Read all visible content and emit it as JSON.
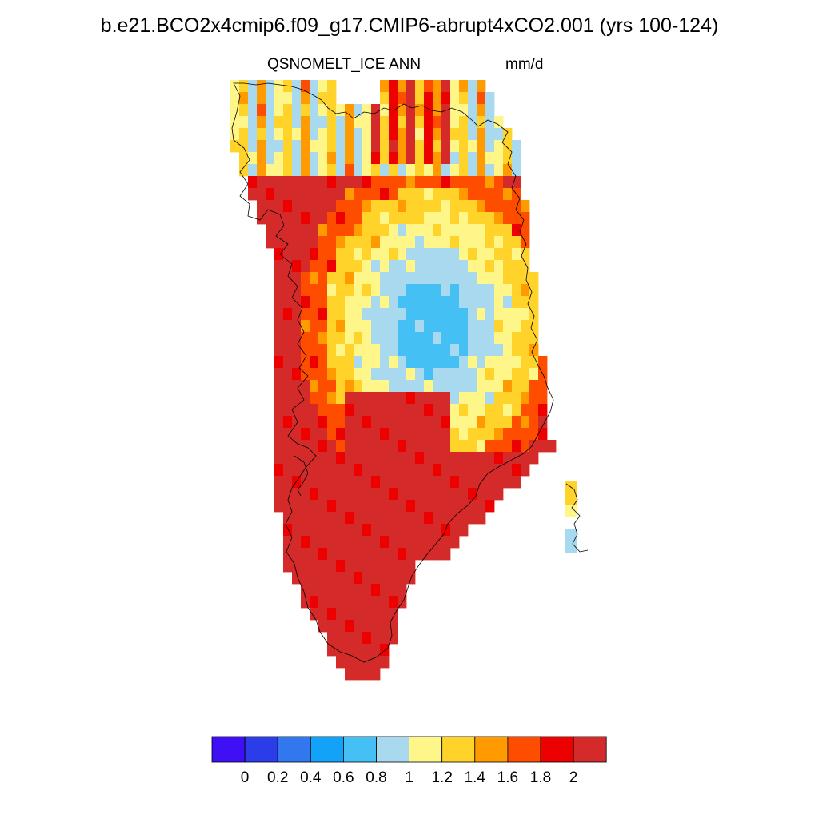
{
  "title": "b.e21.BCO2x4cmip6.f09_g17.CMIP6-abrupt4xCO2.001 (yrs 100-124)",
  "variable": "QSNOMELT_ICE",
  "season": "ANN",
  "units": "mm/d",
  "colorbar": {
    "labels": [
      "0",
      "0.2",
      "0.4",
      "0.6",
      "0.8",
      "1",
      "1.2",
      "1.4",
      "1.6",
      "1.8",
      "2"
    ],
    "colors": [
      "#3f0ff5",
      "#2a3de8",
      "#3277ed",
      "#12a2f8",
      "#45c0f4",
      "#a9d9ef",
      "#fff68a",
      "#ffd32a",
      "#ff9a00",
      "#ff4d00",
      "#ec0000",
      "#d42a2a"
    ]
  },
  "chart_data": {
    "type": "heatmap",
    "variable": "QSNOMELT_ICE",
    "season": "ANN",
    "units": "mm/d",
    "levels": [
      0,
      0.2,
      0.4,
      0.6,
      0.8,
      1,
      1.2,
      1.4,
      1.6,
      1.8,
      2
    ],
    "region_pattern": [
      {
        "region": "interior / central plateau",
        "range": "0.6 – 1.2"
      },
      {
        "region": "northern coast",
        "range": "0.8 – 1.4"
      },
      {
        "region": "ring around interior",
        "range": "1.2 – 1.8"
      },
      {
        "region": "western and eastern margins",
        "range": "1.8 – >2"
      },
      {
        "region": "southern Greenland",
        "range": ">2"
      }
    ]
  }
}
